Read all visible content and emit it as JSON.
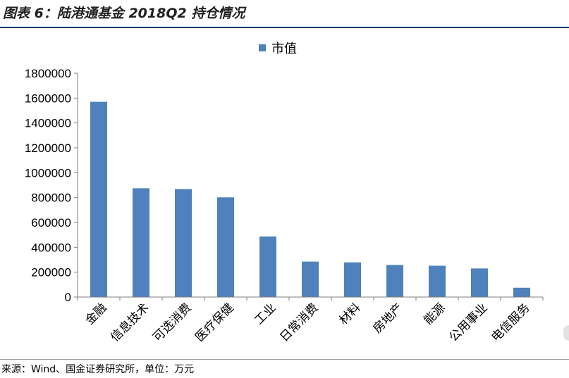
{
  "figure": {
    "title": "图表 6：陆港通基金 2018Q2 持仓情况",
    "source": "来源：Wind、国金证券研究所，单位：万元"
  },
  "chart_data": {
    "type": "bar",
    "categories": [
      "金融",
      "信息技术",
      "可选消费",
      "医疗保健",
      "工业",
      "日常消费",
      "材料",
      "房地产",
      "能源",
      "公用事业",
      "电信服务"
    ],
    "series": [
      {
        "name": "市值",
        "values": [
          1570000,
          875000,
          868000,
          802000,
          487000,
          285000,
          279000,
          258000,
          252000,
          230000,
          75000
        ]
      }
    ],
    "ylim": [
      0,
      1800000
    ],
    "yticks": [
      0,
      200000,
      400000,
      600000,
      800000,
      1000000,
      1200000,
      1400000,
      1600000,
      1800000
    ],
    "grid": false,
    "legend_position": "top-center",
    "bar_color": "#4f81bd"
  }
}
